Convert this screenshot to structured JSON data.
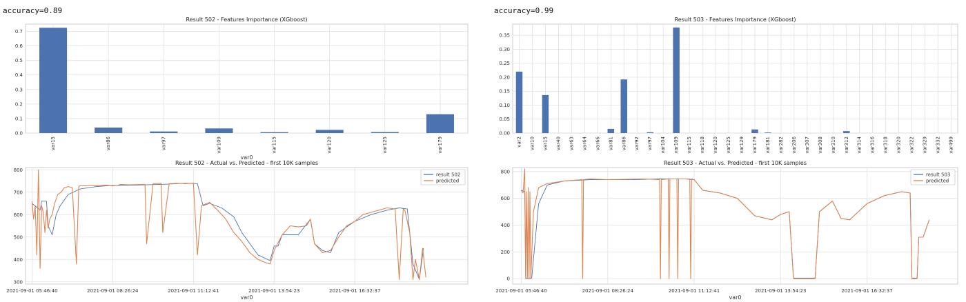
{
  "header": {
    "left_accuracy": "accuracy=0.89",
    "right_accuracy": "accuracy=0.99"
  },
  "colors": {
    "bar": "#4c72b0",
    "actual": "#4c72b0",
    "predicted": "#dd8452",
    "grid": "#e0e0e0"
  },
  "chart_data": [
    {
      "type": "bar",
      "title": "Result 502 - Features Importance (XGboost)",
      "xlabel": "var0",
      "categories": [
        "var15",
        "var86",
        "var97",
        "var109",
        "var115",
        "var120",
        "var125",
        "var179"
      ],
      "values": [
        0.725,
        0.038,
        0.011,
        0.032,
        0.006,
        0.022,
        0.007,
        0.13
      ],
      "ylim": [
        0,
        0.75
      ],
      "yticks": [
        0,
        0.1,
        0.2,
        0.3,
        0.4,
        0.5,
        0.6,
        0.7
      ],
      "yticklabels": [
        "0.0",
        "0.1",
        "0.2",
        "0.3",
        "0.4",
        "0.5",
        "0.6",
        "0.7"
      ],
      "grid": true
    },
    {
      "type": "bar",
      "title": "Result 503 - Features Importance (XGboost)",
      "categories": [
        "var2",
        "var10",
        "var15",
        "var40",
        "var63",
        "var64",
        "var66",
        "var81",
        "var86",
        "var92",
        "var97",
        "var104",
        "var109",
        "var115",
        "var118",
        "var120",
        "var125",
        "var129",
        "var179",
        "var181",
        "var282",
        "var206",
        "var307",
        "var308",
        "var310",
        "var312",
        "var314",
        "var316",
        "var318",
        "var320",
        "var322",
        "var329",
        "var332",
        "var499"
      ],
      "values": [
        0.22,
        0,
        0.136,
        0,
        0,
        0,
        0,
        0.015,
        0.192,
        0,
        0.003,
        0,
        0.378,
        0,
        0,
        0,
        0,
        0,
        0.013,
        0.002,
        0,
        0,
        0,
        0,
        0,
        0.007,
        0,
        0,
        0,
        0,
        0,
        0,
        0,
        0
      ],
      "ylim": [
        0,
        0.39
      ],
      "yticks": [
        0,
        0.05,
        0.1,
        0.15,
        0.2,
        0.25,
        0.3,
        0.35
      ],
      "yticklabels": [
        "0.00",
        "0.05",
        "0.10",
        "0.15",
        "0.20",
        "0.25",
        "0.30",
        "0.35"
      ],
      "grid": true
    },
    {
      "type": "line",
      "title": "Result 502 - Actual vs. Predicted - first 10K samples",
      "xlabel": "var0",
      "xticks": [
        0,
        1,
        2,
        3,
        4
      ],
      "xticklabels": [
        "2021-09-01 05:46:40",
        "2021-09-01 08:26:24",
        "2021-09-01 11:12:41",
        "2021-09-01 13:54:23",
        "2021-09-01 16:32:37"
      ],
      "xlim": [
        -0.08,
        5.4
      ],
      "ylim": [
        290,
        810
      ],
      "yticks": [
        300,
        400,
        500,
        600,
        700,
        800
      ],
      "yticklabels": [
        "300",
        "400",
        "500",
        "600",
        "700",
        "800"
      ],
      "legend_position": "top-right",
      "grid": true,
      "series": [
        {
          "name": "result 502",
          "x": [
            0,
            0.1,
            0.12,
            0.18,
            0.2,
            0.25,
            0.3,
            0.35,
            0.45,
            0.6,
            0.8,
            1.0,
            1.3,
            1.6,
            1.9,
            2.05,
            2.12,
            2.2,
            2.35,
            2.5,
            2.6,
            2.7,
            2.8,
            2.95,
            3.0,
            3.05,
            3.1,
            3.3,
            3.45,
            3.5,
            3.6,
            3.7,
            3.8,
            4.0,
            4.2,
            4.4,
            4.55,
            4.65,
            4.72,
            4.8,
            4.85
          ],
          "y": [
            650,
            620,
            660,
            660,
            550,
            510,
            600,
            640,
            690,
            715,
            725,
            730,
            732,
            735,
            740,
            738,
            640,
            650,
            630,
            590,
            520,
            470,
            420,
            395,
            460,
            460,
            510,
            510,
            580,
            470,
            440,
            430,
            520,
            570,
            600,
            620,
            630,
            625,
            380,
            310,
            450
          ]
        },
        {
          "name": "predicted",
          "x": [
            0,
            0.02,
            0.04,
            0.06,
            0.08,
            0.1,
            0.12,
            0.14,
            0.16,
            0.18,
            0.2,
            0.22,
            0.25,
            0.28,
            0.32,
            0.36,
            0.4,
            0.45,
            0.5,
            0.55,
            0.58,
            0.6,
            0.65,
            0.7,
            0.8,
            0.9,
            1.0,
            1.05,
            1.1,
            1.2,
            1.4,
            1.42,
            1.5,
            1.6,
            1.62,
            1.7,
            1.8,
            1.9,
            2.0,
            2.05,
            2.1,
            2.2,
            2.3,
            2.4,
            2.5,
            2.6,
            2.7,
            2.8,
            2.9,
            2.95,
            3.0,
            3.1,
            3.2,
            3.3,
            3.4,
            3.45,
            3.5,
            3.55,
            3.6,
            3.7,
            3.8,
            3.9,
            4.0,
            4.1,
            4.2,
            4.3,
            4.4,
            4.5,
            4.55,
            4.6,
            4.62,
            4.68,
            4.72,
            4.75,
            4.8,
            4.84,
            4.88
          ],
          "y": [
            660,
            580,
            640,
            420,
            800,
            360,
            640,
            610,
            520,
            620,
            540,
            580,
            600,
            650,
            690,
            700,
            720,
            725,
            720,
            380,
            725,
            730,
            728,
            730,
            728,
            732,
            728,
            730,
            735,
            733,
            735,
            470,
            738,
            740,
            520,
            738,
            740,
            738,
            740,
            420,
            640,
            655,
            620,
            580,
            520,
            480,
            430,
            400,
            385,
            380,
            440,
            510,
            550,
            545,
            550,
            580,
            470,
            450,
            430,
            440,
            500,
            550,
            570,
            600,
            610,
            620,
            630,
            625,
            310,
            625,
            620,
            520,
            310,
            400,
            310,
            450,
            320
          ]
        }
      ]
    },
    {
      "type": "line",
      "title": "Result 503 - Actual vs. Predicted - first 10K samples",
      "xlabel": "var0",
      "xticks": [
        0,
        1,
        2,
        3,
        4
      ],
      "xticklabels": [
        "2021-09-01 05:46:40",
        "2021-09-01 08:26:24",
        "2021-09-01 11:12:41",
        "2021-09-01 13:54:23",
        "2021-09-01 16:32:37"
      ],
      "xlim": [
        -0.1,
        5.05
      ],
      "ylim": [
        -40,
        830
      ],
      "yticks": [
        0,
        200,
        400,
        600,
        800
      ],
      "yticklabels": [
        "0",
        "200",
        "400",
        "600",
        "800"
      ],
      "legend_position": "top-right",
      "grid": true,
      "series": [
        {
          "name": "result 503",
          "x": [
            0,
            0.04,
            0.05,
            0.07,
            0.08,
            0.12,
            0.2,
            0.3,
            0.5,
            0.8,
            1.0,
            1.3,
            1.6,
            1.9,
            2.0,
            2.1,
            2.3,
            2.5,
            2.7,
            2.9,
            3.0,
            3.1,
            3.15,
            3.4,
            3.45,
            3.6,
            3.7,
            3.8,
            4.0,
            4.2,
            4.4,
            4.5,
            4.52,
            4.58,
            4.6,
            4.65,
            4.72
          ],
          "y": [
            660,
            650,
            5,
            5,
            5,
            5,
            560,
            700,
            730,
            740,
            740,
            740,
            745,
            745,
            740,
            660,
            640,
            600,
            470,
            440,
            480,
            500,
            5,
            5,
            500,
            580,
            450,
            440,
            560,
            620,
            650,
            640,
            5,
            5,
            310,
            310,
            440
          ]
        },
        {
          "name": "predicted",
          "x": [
            0,
            0.02,
            0.04,
            0.05,
            0.06,
            0.07,
            0.08,
            0.09,
            0.1,
            0.11,
            0.14,
            0.2,
            0.3,
            0.5,
            0.7,
            0.71,
            0.72,
            0.8,
            1.0,
            1.2,
            1.4,
            1.6,
            1.61,
            1.62,
            1.7,
            1.71,
            1.72,
            1.8,
            1.81,
            1.82,
            1.9,
            1.95,
            1.96,
            1.97,
            2.0,
            2.1,
            2.3,
            2.5,
            2.7,
            2.9,
            3.0,
            3.1,
            3.15,
            3.4,
            3.45,
            3.6,
            3.7,
            3.8,
            4.0,
            4.2,
            4.4,
            4.5,
            4.52,
            4.58,
            4.6,
            4.65,
            4.72
          ],
          "y": [
            660,
            640,
            820,
            0,
            650,
            0,
            680,
            0,
            650,
            0,
            500,
            680,
            710,
            730,
            740,
            0,
            740,
            745,
            740,
            742,
            745,
            740,
            0,
            740,
            745,
            0,
            745,
            745,
            0,
            745,
            745,
            745,
            0,
            745,
            740,
            660,
            640,
            600,
            470,
            440,
            480,
            500,
            0,
            0,
            500,
            580,
            450,
            440,
            560,
            620,
            650,
            640,
            0,
            0,
            310,
            310,
            440
          ]
        }
      ]
    }
  ]
}
